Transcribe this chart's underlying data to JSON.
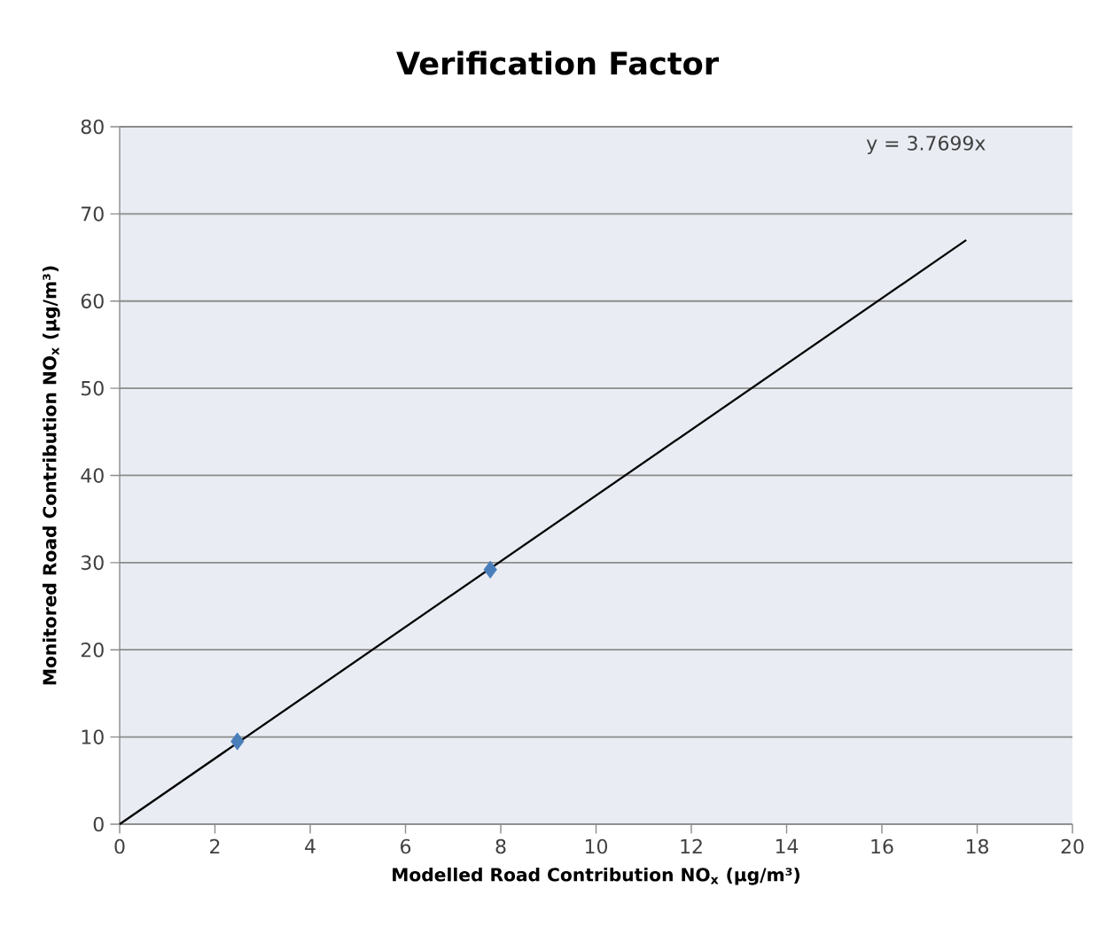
{
  "chart_data": {
    "type": "scatter",
    "title": "Verification Factor",
    "xlabel": "Modelled Road Contribution NO$_{x}$ (µg/m³)",
    "ylabel": "Monitored Road Contribution NO$_{x}$ (µg/m³)",
    "series": [
      {
        "x": [
          2.47,
          7.78
        ],
        "values": [
          9.5,
          29.2
        ],
        "color": "#4a7ebb",
        "marker": "diamond"
      },
      {
        "type": "line",
        "x": [
          0,
          17.77
        ],
        "values": [
          0,
          67
        ],
        "color": "#000000",
        "marker": "none",
        "line_style": "solid"
      }
    ],
    "annotations": [
      "y = 3.7699x"
    ],
    "xlim": [
      0,
      20
    ],
    "ylim": [
      0,
      80
    ],
    "xticks": [
      0,
      2,
      4,
      6,
      8,
      10,
      12,
      14,
      16,
      18,
      20
    ],
    "yticks": [
      0,
      10,
      20,
      30,
      40,
      50,
      60,
      70,
      80
    ],
    "grid": "y"
  }
}
